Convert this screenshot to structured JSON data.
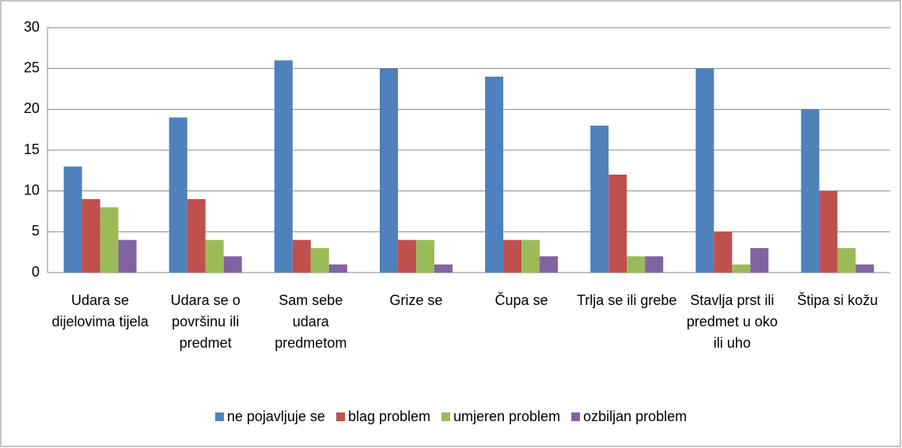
{
  "chart_data": {
    "type": "bar",
    "categories": [
      "Udara se dijelovima tijela",
      "Udara se o površinu ili predmet",
      "Sam sebe udara predmetom",
      "Grize se",
      "Čupa se",
      "Trlja se ili grebe",
      "Stavlja prst ili predmet u oko ili uho",
      "Štipa si kožu"
    ],
    "series": [
      {
        "name": "ne pojavljuje se",
        "color": "#4f81bd",
        "values": [
          13,
          19,
          26,
          25,
          24,
          18,
          25,
          20
        ]
      },
      {
        "name": "blag problem",
        "color": "#c0504d",
        "values": [
          9,
          9,
          4,
          4,
          4,
          12,
          5,
          10
        ]
      },
      {
        "name": "umjeren problem",
        "color": "#9bbb59",
        "values": [
          8,
          4,
          3,
          4,
          4,
          2,
          1,
          3
        ]
      },
      {
        "name": "ozbiljan problem",
        "color": "#8064a2",
        "values": [
          4,
          2,
          1,
          1,
          2,
          2,
          3,
          1
        ]
      }
    ],
    "ylim": [
      0,
      30
    ],
    "yticks": [
      0,
      5,
      10,
      15,
      20,
      25,
      30
    ],
    "grid": true,
    "legend": "bottom"
  }
}
